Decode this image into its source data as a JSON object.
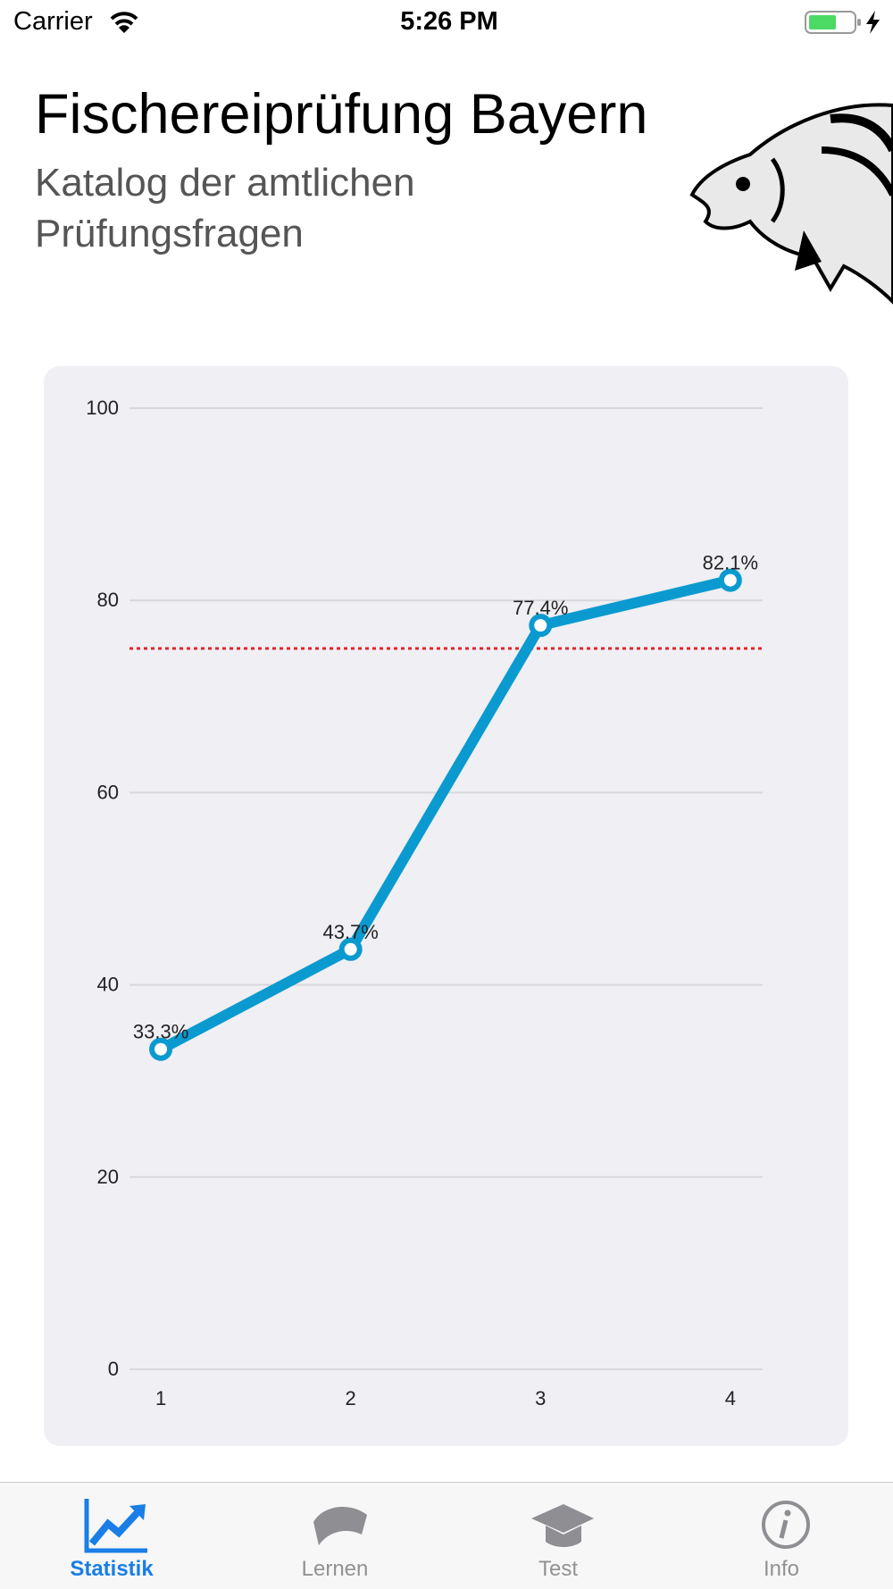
{
  "status_bar": {
    "carrier": "Carrier",
    "time": "5:26 PM"
  },
  "header": {
    "title": "Fischereiprüfung Bayern",
    "subtitle": "Katalog der amtlichen Prüfungsfragen"
  },
  "chart_data": {
    "type": "line",
    "x": [
      1,
      2,
      3,
      4
    ],
    "series": [
      {
        "values": [
          33.3,
          43.7,
          77.4,
          82.1
        ],
        "value_labels": [
          "33.3%",
          "43.7%",
          "77.4%",
          "82.1%"
        ],
        "color": "#0a9acf"
      }
    ],
    "reference_line": {
      "value": 75,
      "color": "#e0262a"
    },
    "xlim": [
      0.835,
      4.17
    ],
    "xticks": [
      1,
      2,
      3,
      4
    ],
    "ylim": [
      0,
      100
    ],
    "yticks": [
      0,
      20,
      40,
      60,
      80,
      100
    ],
    "grid": true
  },
  "tab_bar": {
    "items": [
      "Statistik",
      "Lernen",
      "Test",
      "Info"
    ],
    "selected": 0
  }
}
